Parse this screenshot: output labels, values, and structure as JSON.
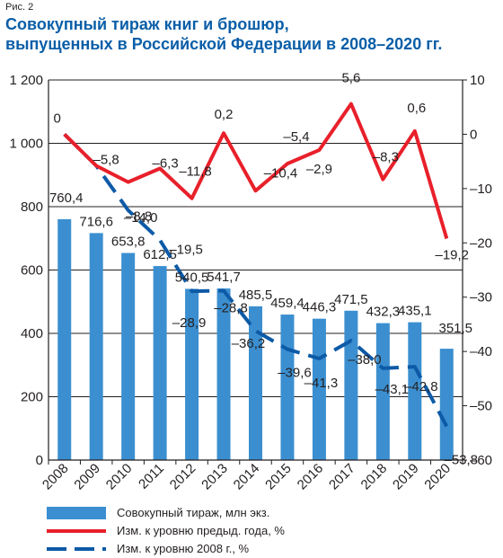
{
  "figure_label": "Рис. 2",
  "title_line1": "Совокупный тираж книг и брошюр,",
  "title_line2": "выпущенных в Российской Федерации в 2008–2020 гг.",
  "colors": {
    "bars": "#3b8fd0",
    "line_prev": "#e8202a",
    "line_base": "#0d5aa7",
    "title": "#0a5ea8"
  },
  "chart_data": {
    "type": "bar",
    "categories": [
      "2008",
      "2009",
      "2010",
      "2011",
      "2012",
      "2013",
      "2014",
      "2015",
      "2016",
      "2017",
      "2018",
      "2019",
      "2020"
    ],
    "series": [
      {
        "name": "Совокупный тираж, млн экз.",
        "type": "bar",
        "axis": "left",
        "values": [
          760.4,
          716.6,
          653.8,
          612.5,
          540.5,
          541.7,
          485.5,
          459.4,
          446.3,
          471.5,
          432.3,
          435.1,
          351.5
        ],
        "labels": [
          "760,4",
          "716,6",
          "653,8",
          "612,5",
          "540,5",
          "541,7",
          "485,5",
          "459,4",
          "446,3",
          "471,5",
          "432,3",
          "435,1",
          "351,5"
        ]
      },
      {
        "name": "Изм. к уровню предыд. года, %",
        "type": "line",
        "axis": "right",
        "values": [
          0,
          -5.8,
          -8.8,
          -6.3,
          -11.8,
          0.2,
          -10.4,
          -5.4,
          -2.9,
          5.6,
          -8.3,
          0.6,
          -19.2
        ],
        "labels": [
          "0",
          "–5,8",
          "–8,8",
          "–6,3",
          "–11,8",
          "0,2",
          "–10,4",
          "–5,4",
          "–2,9",
          "5,6",
          "–8,3",
          "0,6",
          "–19,2"
        ]
      },
      {
        "name": "Изм. к уровню 2008 г., %",
        "type": "line",
        "style": "dashed",
        "axis": "right",
        "values": [
          0,
          -5.8,
          -14.0,
          -19.5,
          -28.9,
          -28.8,
          -36.2,
          -39.6,
          -41.3,
          -38.0,
          -43.1,
          -42.8,
          -53.8
        ],
        "labels": [
          "",
          "",
          "–14,0",
          "–19,5",
          "–28,9",
          "–28,8",
          "–36,2",
          "–39,6",
          "–41,3",
          "–38,0",
          "–43,1",
          "–42,8",
          "–53,8"
        ]
      }
    ],
    "y_left": {
      "ylim": [
        0,
        1200
      ],
      "ticks": [
        0,
        200,
        400,
        600,
        800,
        1000,
        1200
      ],
      "tick_labels": [
        "0",
        "200",
        "400",
        "600",
        "800",
        "1 000",
        "1 200"
      ]
    },
    "y_right": {
      "ylim": [
        -60,
        10
      ],
      "ticks": [
        -60,
        -50,
        -40,
        -30,
        -20,
        -10,
        0,
        10
      ],
      "tick_labels": [
        "–60",
        "–50",
        "–40",
        "–30",
        "–20",
        "–10",
        "0",
        "10"
      ]
    },
    "grid": "horizontal",
    "legend_position": "bottom"
  }
}
